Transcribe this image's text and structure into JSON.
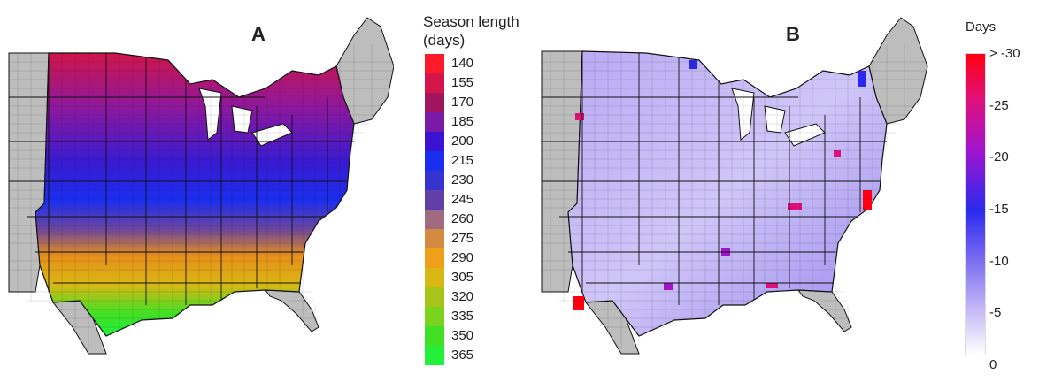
{
  "panel_a": {
    "letter": "A",
    "legend_title": "Season length\n(days)",
    "legend": [
      {
        "label": "140",
        "color": "#ff1a2a"
      },
      {
        "label": "155",
        "color": "#d4154a"
      },
      {
        "label": "170",
        "color": "#a01460"
      },
      {
        "label": "185",
        "color": "#7a1aa8"
      },
      {
        "label": "200",
        "color": "#3a14d2"
      },
      {
        "label": "215",
        "color": "#1a2ef0"
      },
      {
        "label": "230",
        "color": "#3434d0"
      },
      {
        "label": "245",
        "color": "#6040a8"
      },
      {
        "label": "260",
        "color": "#a06a80"
      },
      {
        "label": "275",
        "color": "#d48a40"
      },
      {
        "label": "290",
        "color": "#f0a018"
      },
      {
        "label": "305",
        "color": "#d8b814"
      },
      {
        "label": "320",
        "color": "#a8c41a"
      },
      {
        "label": "335",
        "color": "#7ad41e"
      },
      {
        "label": "350",
        "color": "#42e024"
      },
      {
        "label": "365",
        "color": "#22f03a"
      }
    ]
  },
  "panel_b": {
    "letter": "B",
    "legend_title": "Days",
    "labels": [
      "> -30",
      "-25",
      "-20",
      "-15",
      "-10",
      "-5",
      "0"
    ],
    "gradient": [
      "#ff0010",
      "#e0107a",
      "#a014cc",
      "#2a2aee",
      "#7a6af0",
      "#b8aaf4",
      "#ffffff"
    ]
  },
  "colors": {
    "no_data": "#bdbdbd",
    "border": "#111111"
  }
}
